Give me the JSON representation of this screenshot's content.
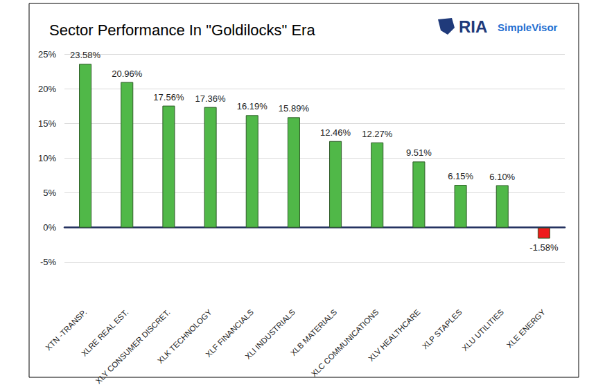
{
  "chart_data": {
    "type": "bar",
    "title": "Sector Performance In \"Goldilocks\" Era",
    "annotations": [
      "RIA",
      "SimpleVisor"
    ],
    "categories": [
      "XTN -TRANSP.",
      "XLRE REAL EST.",
      "XLY CONSUMER DISCRET.",
      "XLK TECHNOLOGY",
      "XLF FINANCIALS",
      "XLI INDUSTRIALS",
      "XLB MATERIALS",
      "XLC COMMUNICATIONS",
      "XLV HEALTHCARE",
      "XLP STAPLES",
      "XLU UTILITIES",
      "XLE ENERGY"
    ],
    "values": [
      23.58,
      20.96,
      17.56,
      17.36,
      16.19,
      15.89,
      12.46,
      12.27,
      9.51,
      6.15,
      6.1,
      -1.58
    ],
    "value_labels": [
      "23.58%",
      "20.96%",
      "17.56%",
      "17.36%",
      "16.19%",
      "15.89%",
      "12.46%",
      "12.27%",
      "9.51%",
      "6.15%",
      "6.10%",
      "-1.58%"
    ],
    "colors": [
      "#50b848",
      "#50b848",
      "#50b848",
      "#50b848",
      "#50b848",
      "#50b848",
      "#50b848",
      "#50b848",
      "#50b848",
      "#50b848",
      "#50b848",
      "#ee1c1c"
    ],
    "ylim": [
      -5,
      25
    ],
    "yticks": [
      {
        "value": -5,
        "label": "-5%"
      },
      {
        "value": 0,
        "label": "0%"
      },
      {
        "value": 5,
        "label": "5%"
      },
      {
        "value": 10,
        "label": "10%"
      },
      {
        "value": 15,
        "label": "15%"
      },
      {
        "value": 20,
        "label": "20%"
      },
      {
        "value": 25,
        "label": "25%"
      }
    ],
    "grid": true,
    "data_labels": true
  }
}
